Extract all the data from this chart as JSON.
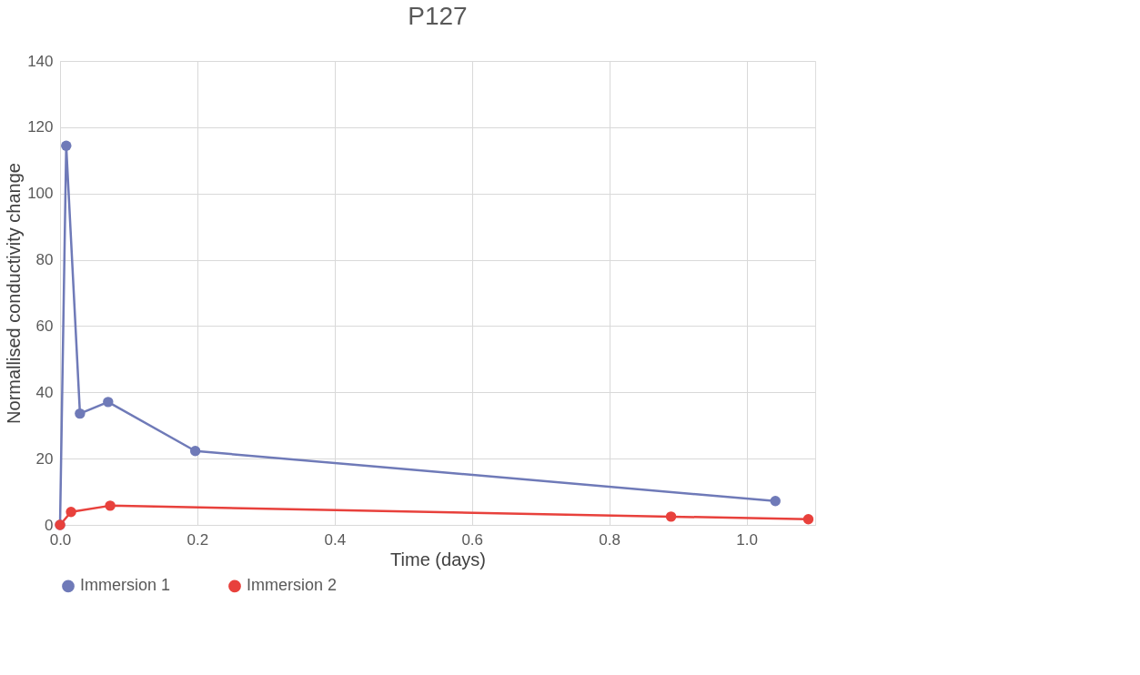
{
  "chart_data": {
    "type": "line",
    "title": "P127",
    "xlabel": "Time (days)",
    "ylabel": "Normallised conductivity change",
    "xlim": [
      0,
      1.1
    ],
    "xticks": [
      {
        "value": 0,
        "label": "0.0"
      },
      {
        "value": 0.2,
        "label": "0.2"
      },
      {
        "value": 0.4,
        "label": "0.4"
      },
      {
        "value": 0.6,
        "label": "0.6"
      },
      {
        "value": 0.8,
        "label": "0.8"
      },
      {
        "value": 1,
        "label": "1.0"
      }
    ],
    "ylim": [
      0,
      140
    ],
    "yticks": [
      0,
      20,
      40,
      60,
      80,
      100,
      120,
      140
    ],
    "grid": true,
    "legend": "bottom",
    "marker": "circle",
    "line_style": "solid",
    "series": [
      {
        "name": "Immersion 1",
        "color": "#6f7ab8",
        "x": [
          0,
          0.009,
          0.029,
          0.07,
          0.197,
          1.042
        ],
        "values": [
          0,
          114.4,
          33.6,
          37.1,
          22.3,
          7.2
        ]
      },
      {
        "name": "Immersion 2",
        "color": "#e8413c",
        "x": [
          0,
          0.016,
          0.073,
          0.89,
          1.09
        ],
        "values": [
          0,
          3.9,
          5.8,
          2.5,
          1.7
        ]
      }
    ]
  }
}
